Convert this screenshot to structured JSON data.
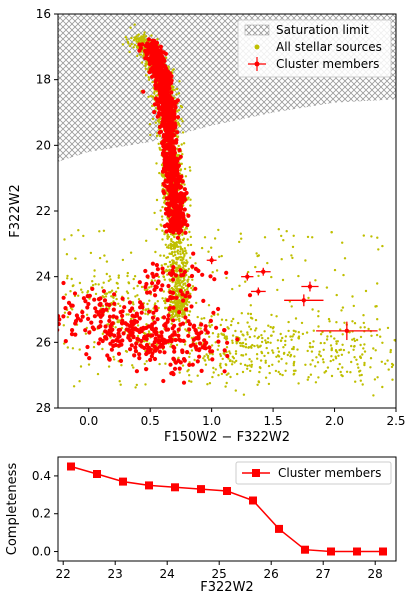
{
  "chart_data": [
    {
      "type": "scatter",
      "xlabel": "F150W2 − F322W2",
      "ylabel": "F322W2",
      "xlim": [
        -0.25,
        2.5
      ],
      "ylim": [
        28,
        16
      ],
      "y_inverted": true,
      "xticks": [
        0.0,
        0.5,
        1.0,
        1.5,
        2.0,
        2.5
      ],
      "xtick_labels": [
        "0.0",
        "0.5",
        "1.0",
        "1.5",
        "2.0",
        "2.5"
      ],
      "yticks": [
        16,
        18,
        20,
        22,
        24,
        26,
        28
      ],
      "ytick_labels": [
        "16",
        "18",
        "20",
        "22",
        "24",
        "26",
        "28"
      ],
      "legend_position": "top-right",
      "legend": [
        "Saturation limit",
        "All stellar sources",
        "Cluster members"
      ],
      "colors": {
        "stellar": "#bfbf00",
        "members": "#ff0000",
        "saturation": "#9a9a9a"
      },
      "saturation_limit": {
        "name": "Saturation limit",
        "boundary": [
          [
            -0.25,
            20.5
          ],
          [
            0.0,
            20.2
          ],
          [
            0.5,
            19.9
          ],
          [
            1.0,
            19.4
          ],
          [
            1.5,
            19.0
          ],
          [
            2.0,
            18.7
          ],
          [
            2.5,
            18.6
          ]
        ]
      },
      "stellar_sources": {
        "name": "All stellar sources",
        "sequence": [
          [
            0.4,
            16.7
          ],
          [
            0.5,
            17.2
          ],
          [
            0.58,
            17.8
          ],
          [
            0.63,
            18.6
          ],
          [
            0.66,
            19.6
          ],
          [
            0.68,
            20.6
          ],
          [
            0.7,
            21.6
          ],
          [
            0.71,
            22.6
          ],
          [
            0.72,
            23.6
          ],
          [
            0.73,
            24.6
          ],
          [
            0.72,
            25.2
          ]
        ],
        "clump": [
          [
            0.1,
            24.6
          ],
          [
            0.3,
            25.0
          ],
          [
            0.5,
            25.5
          ],
          [
            0.8,
            25.9
          ],
          [
            1.1,
            26.1
          ],
          [
            1.3,
            26.3
          ],
          [
            1.6,
            26.2
          ],
          [
            2.0,
            26.1
          ],
          [
            2.3,
            26.3
          ]
        ]
      },
      "cluster_members": {
        "name": "Cluster members",
        "sequence": [
          [
            0.5,
            16.9
          ],
          [
            0.55,
            17.4
          ],
          [
            0.6,
            18.0
          ],
          [
            0.63,
            18.8
          ],
          [
            0.65,
            19.6
          ],
          [
            0.67,
            20.5
          ],
          [
            0.69,
            21.3
          ],
          [
            0.71,
            22.0
          ],
          [
            0.72,
            22.6
          ]
        ],
        "clump": [
          [
            0.05,
            25.1
          ],
          [
            0.25,
            25.7
          ],
          [
            0.45,
            25.9
          ],
          [
            0.6,
            25.6
          ],
          [
            0.85,
            26.1
          ],
          [
            0.7,
            24.2
          ]
        ],
        "with_error_bars": [
          {
            "x": 1.0,
            "y": 23.5,
            "xerr": 0.04,
            "yerr": 0.12
          },
          {
            "x": 1.29,
            "y": 24.0,
            "xerr": 0.05,
            "yerr": 0.12
          },
          {
            "x": 1.42,
            "y": 23.85,
            "xerr": 0.06,
            "yerr": 0.12
          },
          {
            "x": 1.38,
            "y": 24.45,
            "xerr": 0.06,
            "yerr": 0.12
          },
          {
            "x": 1.8,
            "y": 24.3,
            "xerr": 0.07,
            "yerr": 0.15
          },
          {
            "x": 1.75,
            "y": 24.72,
            "xerr": 0.16,
            "yerr": 0.18
          },
          {
            "x": 2.1,
            "y": 25.65,
            "xerr": 0.25,
            "yerr": 0.28
          }
        ]
      }
    },
    {
      "type": "line",
      "xlabel": "F322W2",
      "ylabel": "Completeness",
      "xlim": [
        21.9,
        28.4
      ],
      "ylim": [
        -0.05,
        0.5
      ],
      "xticks": [
        22,
        23,
        24,
        25,
        26,
        27,
        28
      ],
      "xtick_labels": [
        "22",
        "23",
        "24",
        "25",
        "26",
        "27",
        "28"
      ],
      "yticks": [
        0.0,
        0.2,
        0.4
      ],
      "ytick_labels": [
        "0.0",
        "0.2",
        "0.4"
      ],
      "legend_position": "top-right",
      "series": [
        {
          "name": "Cluster members",
          "color": "#ff0000",
          "marker": "square",
          "x": [
            22.15,
            22.65,
            23.15,
            23.65,
            24.15,
            24.65,
            25.15,
            25.65,
            26.15,
            26.65,
            27.15,
            27.65,
            28.15
          ],
          "y": [
            0.45,
            0.41,
            0.37,
            0.35,
            0.34,
            0.33,
            0.32,
            0.27,
            0.12,
            0.01,
            0.0,
            0.0,
            0.0
          ]
        }
      ]
    }
  ]
}
